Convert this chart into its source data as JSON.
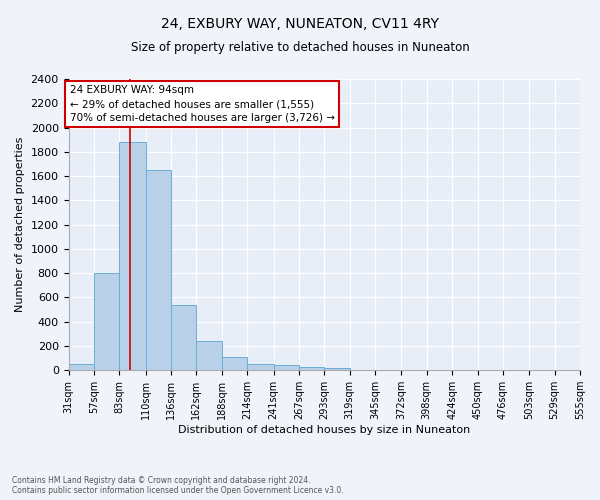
{
  "title": "24, EXBURY WAY, NUNEATON, CV11 4RY",
  "subtitle": "Size of property relative to detached houses in Nuneaton",
  "xlabel": "Distribution of detached houses by size in Nuneaton",
  "ylabel": "Number of detached properties",
  "bar_values": [
    55,
    800,
    1880,
    1650,
    535,
    240,
    110,
    55,
    40,
    25,
    20,
    0,
    0,
    0,
    0,
    0,
    0,
    0,
    0,
    0
  ],
  "bin_edges": [
    31,
    57,
    83,
    110,
    136,
    162,
    188,
    214,
    241,
    267,
    293,
    319,
    345,
    372,
    398,
    424,
    450,
    476,
    503,
    529,
    555
  ],
  "bar_color": "#b8d0e8",
  "bar_edgecolor": "#6baed6",
  "property_size": 94,
  "property_line_color": "#cc0000",
  "ylim": [
    0,
    2400
  ],
  "yticks": [
    0,
    200,
    400,
    600,
    800,
    1000,
    1200,
    1400,
    1600,
    1800,
    2000,
    2200,
    2400
  ],
  "annotation_title": "24 EXBURY WAY: 94sqm",
  "annotation_line1": "← 29% of detached houses are smaller (1,555)",
  "annotation_line2": "70% of semi-detached houses are larger (3,726) →",
  "annotation_box_color": "#cc0000",
  "footer_line1": "Contains HM Land Registry data © Crown copyright and database right 2024.",
  "footer_line2": "Contains public sector information licensed under the Open Government Licence v3.0.",
  "background_color": "#f0f4fa",
  "plot_bg_color": "#e8eef8",
  "grid_color": "#ffffff",
  "title_fontsize": 10,
  "subtitle_fontsize": 8.5,
  "ylabel_fontsize": 8,
  "xlabel_fontsize": 8,
  "ytick_fontsize": 8,
  "xtick_fontsize": 7,
  "annotation_fontsize": 7.5,
  "footer_fontsize": 5.5
}
